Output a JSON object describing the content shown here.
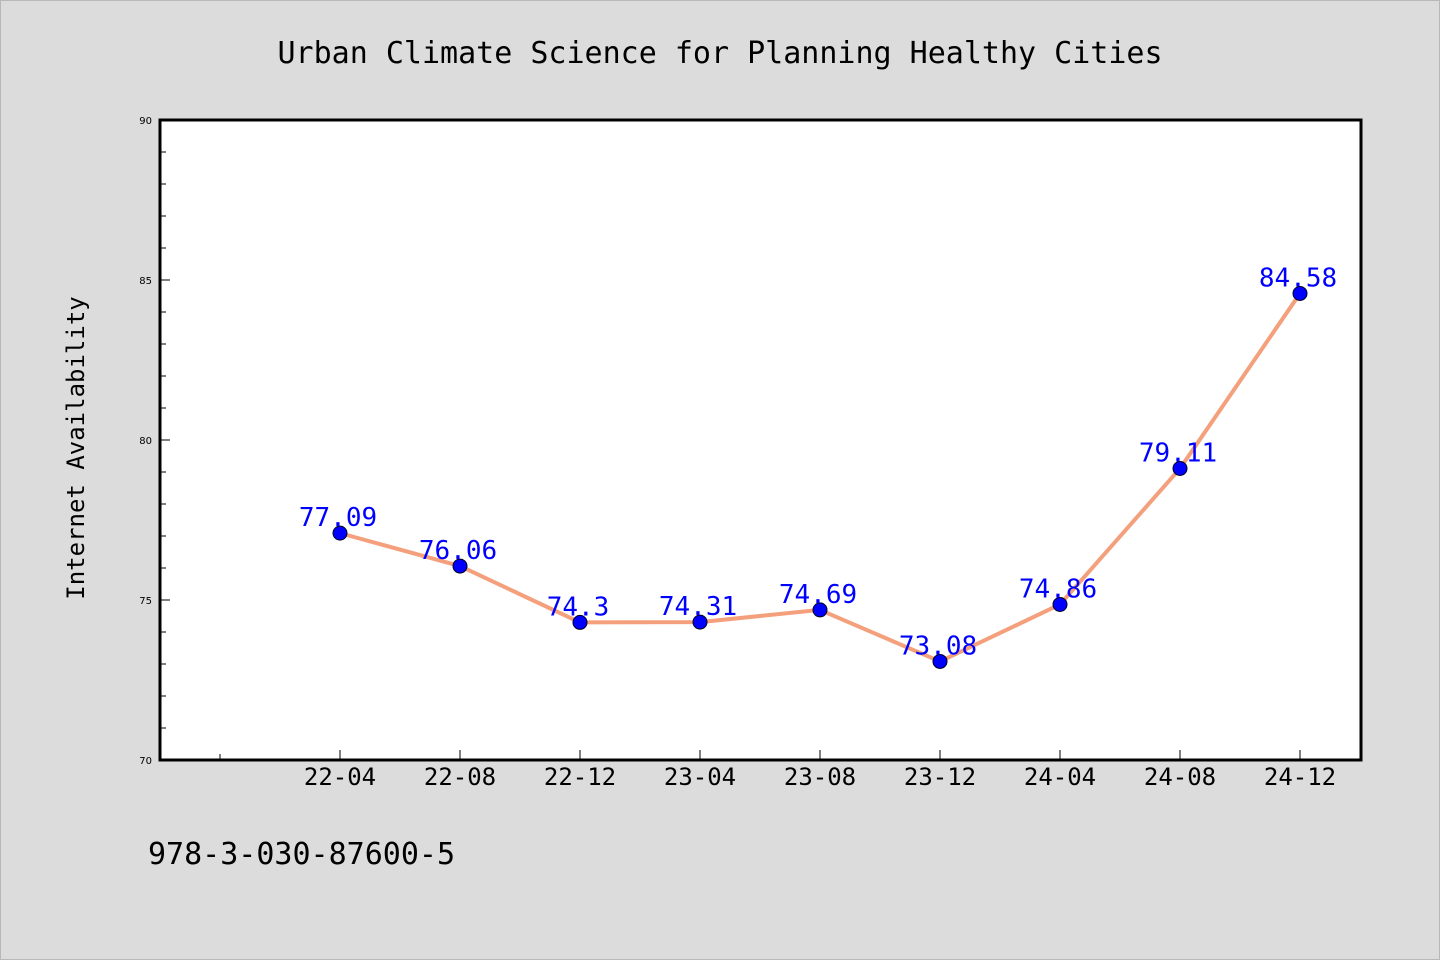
{
  "chart_data": {
    "type": "line",
    "title": "Urban Climate Science for Planning Healthy Cities",
    "xlabel": "",
    "ylabel": "Internet Availability",
    "categories": [
      "22-04",
      "22-08",
      "22-12",
      "23-04",
      "23-08",
      "23-12",
      "24-04",
      "24-08",
      "24-12"
    ],
    "series": [
      {
        "values": [
          77.09,
          76.06,
          74.3,
          74.31,
          74.69,
          73.08,
          74.86,
          79.11,
          84.58
        ],
        "labels": [
          "77.09",
          "76.06",
          "74.3",
          "74.31",
          "74.69",
          "73.08",
          "74.86",
          "79.11",
          "84.58"
        ]
      }
    ],
    "ylim": [
      70,
      90
    ],
    "yticks": [
      "70",
      "75",
      "80",
      "85",
      "90"
    ],
    "grid": false,
    "colors": {
      "line": "#f4a07c",
      "marker": "#0000ff",
      "label": "#0000ff"
    }
  },
  "footer": {
    "isbn": "978-3-030-87600-5"
  }
}
